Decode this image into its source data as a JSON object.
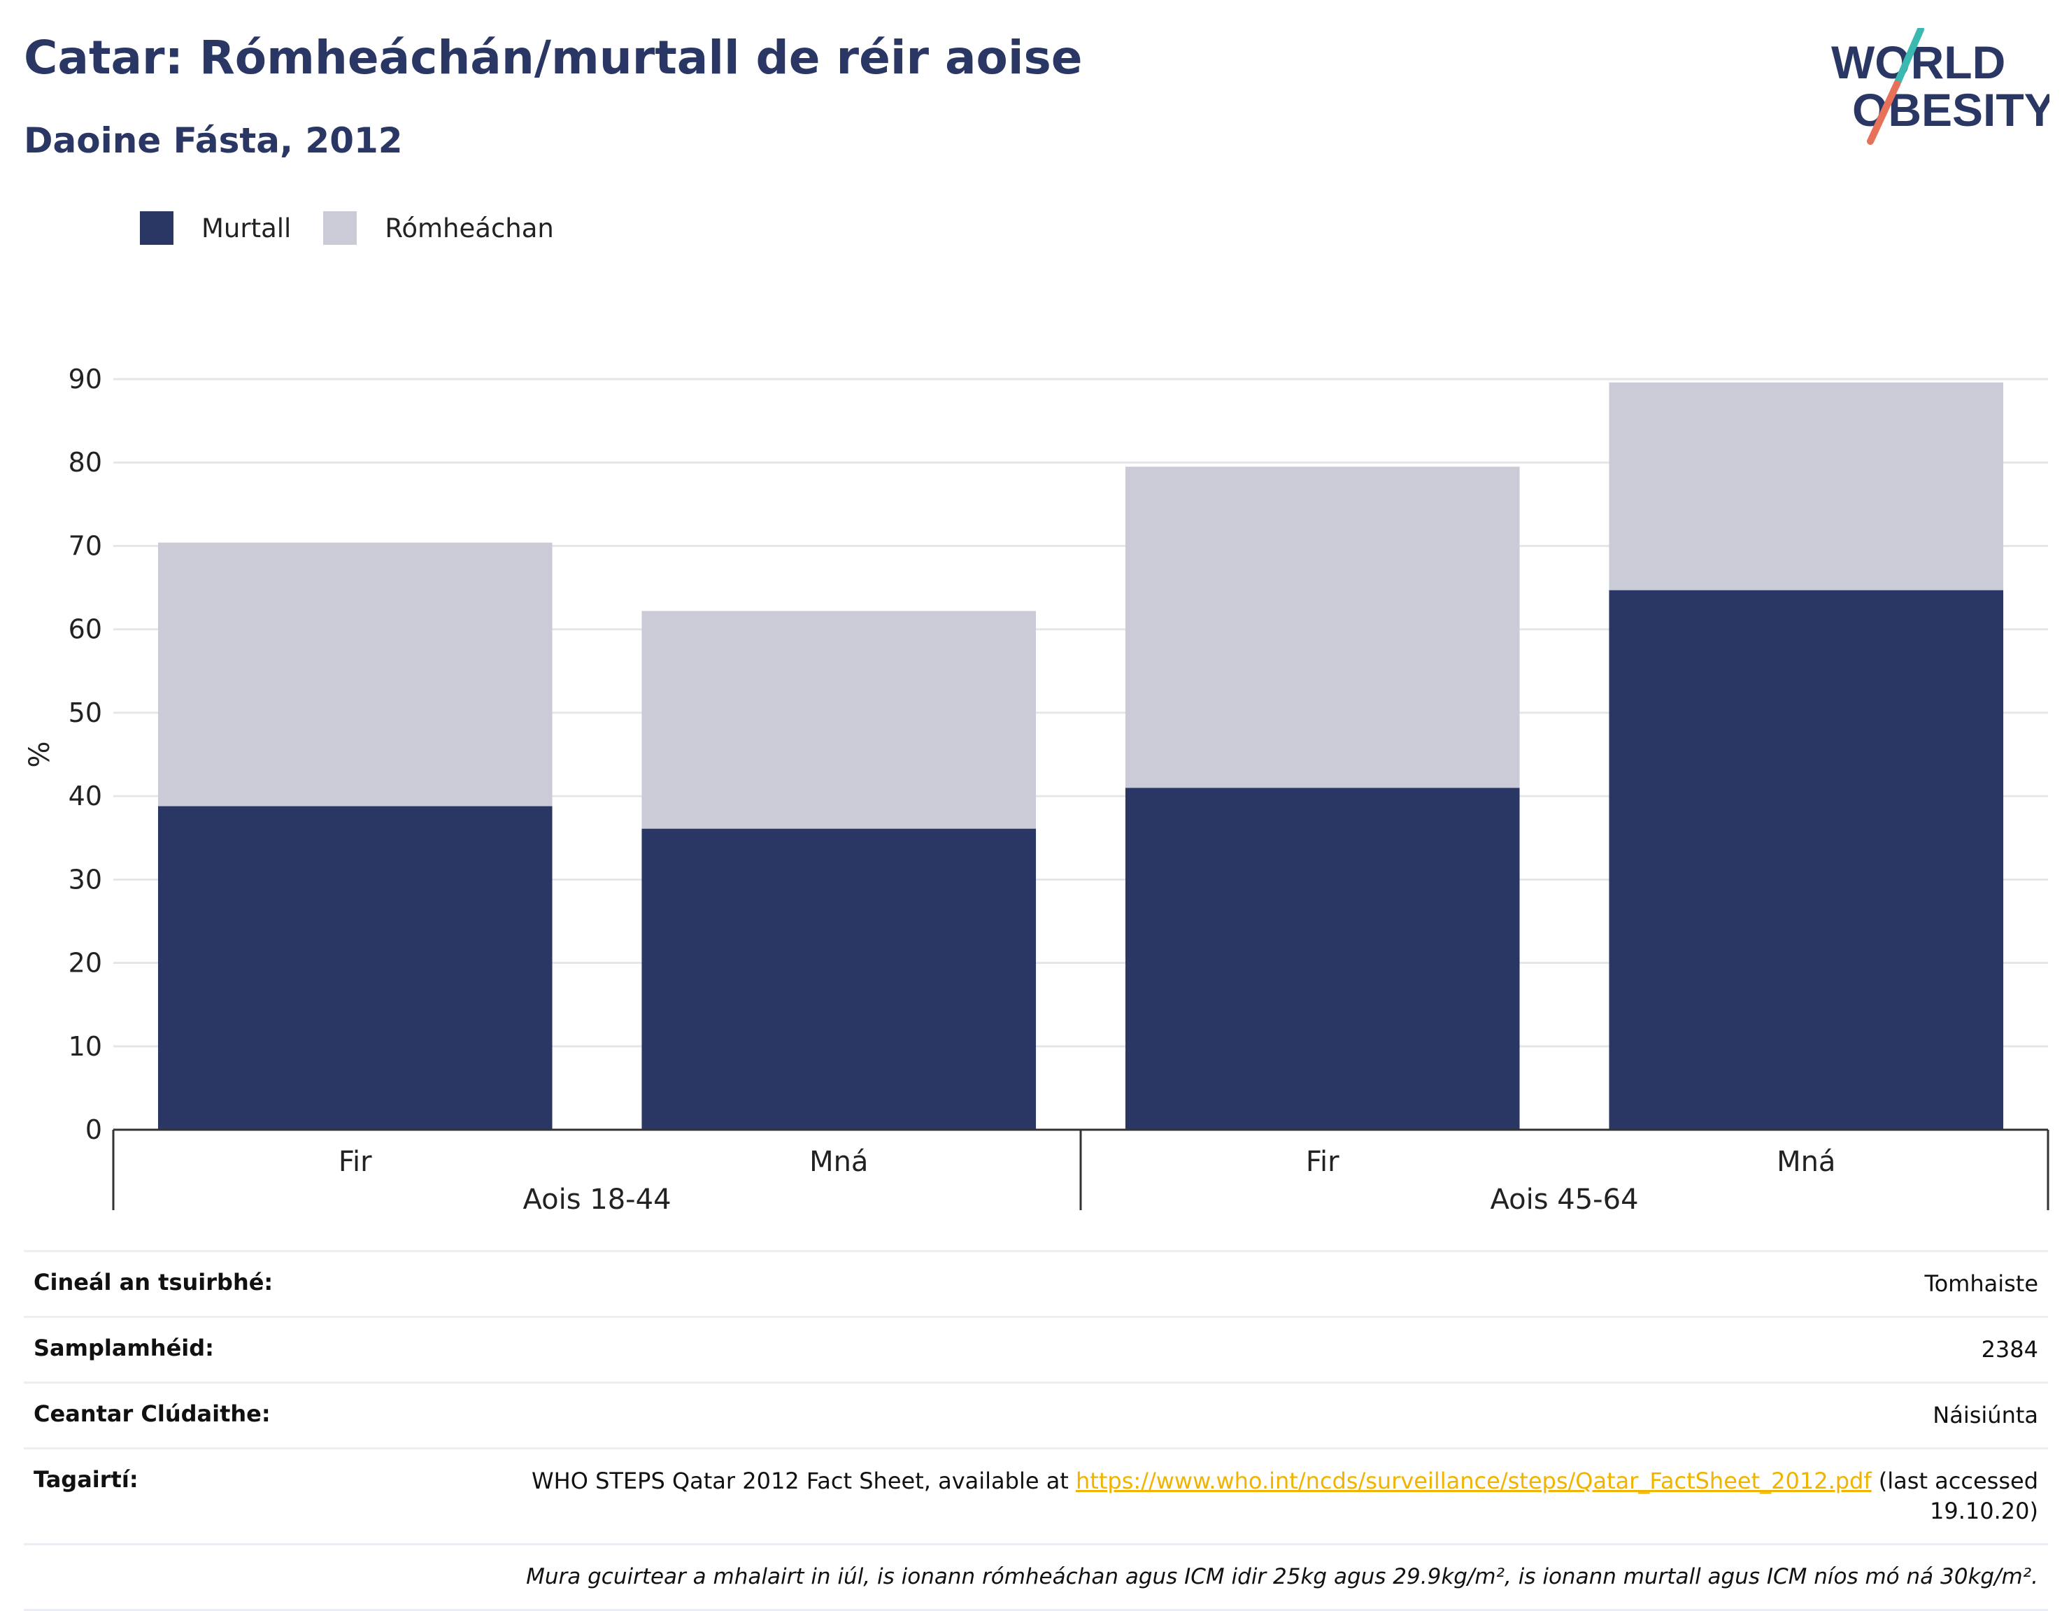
{
  "header": {
    "title": "Catar: Rómheáchán/murtall de réir aoise",
    "subtitle": "Daoine Fásta, 2012"
  },
  "logo": {
    "line1": "WORLD",
    "line2": "OBESITY"
  },
  "colors": {
    "obese": "#2a3764",
    "overweight": "#cacbd7",
    "grid": "#e6e6ea",
    "axis": "#333333",
    "link": "#f0b400"
  },
  "legend": [
    {
      "label": "Murtall",
      "color": "#2a3764"
    },
    {
      "label": "Rómheáchan",
      "color": "#cacbd7"
    }
  ],
  "chart_data": {
    "type": "bar",
    "stacked": true,
    "ylabel": "%",
    "ylim": [
      0,
      90
    ],
    "yticks": [
      0,
      10,
      20,
      30,
      40,
      50,
      60,
      70,
      80,
      90
    ],
    "grid": true,
    "legend_position": "top-left",
    "groups": [
      {
        "label": "Aois 18-44",
        "categories": [
          "Fir",
          "Mná"
        ]
      },
      {
        "label": "Aois 45-64",
        "categories": [
          "Fir",
          "Mná"
        ]
      }
    ],
    "categories": [
      "Fir",
      "Mná",
      "Fir",
      "Mná"
    ],
    "series": [
      {
        "name": "Murtall",
        "values": [
          38.8,
          36.1,
          41.0,
          64.7
        ]
      },
      {
        "name": "Rómheáchan",
        "values": [
          31.6,
          26.1,
          38.5,
          24.9
        ]
      }
    ]
  },
  "info": {
    "rows": [
      {
        "key": "Cineál an tsuirbhé:",
        "value": "Tomhaiste"
      },
      {
        "key": "Samplamhéid:",
        "value": "2384"
      },
      {
        "key": "Ceantar Clúdaithe:",
        "value": "Náisiúnta"
      }
    ],
    "references": {
      "key": "Tagairtí:",
      "prefix": "WHO STEPS Qatar 2012 Fact Sheet, available at ",
      "link": "https://www.who.int/ncds/surveillance/steps/Qatar_FactSheet_2012.pdf",
      "suffix": " (last accessed 19.10.20)"
    },
    "note": "Mura gcuirtear a mhalairt in iúl, is ionann rómheáchan agus ICM idir 25kg agus 29.9kg/m², is ionann murtall agus ICM níos mó ná 30kg/m²."
  }
}
